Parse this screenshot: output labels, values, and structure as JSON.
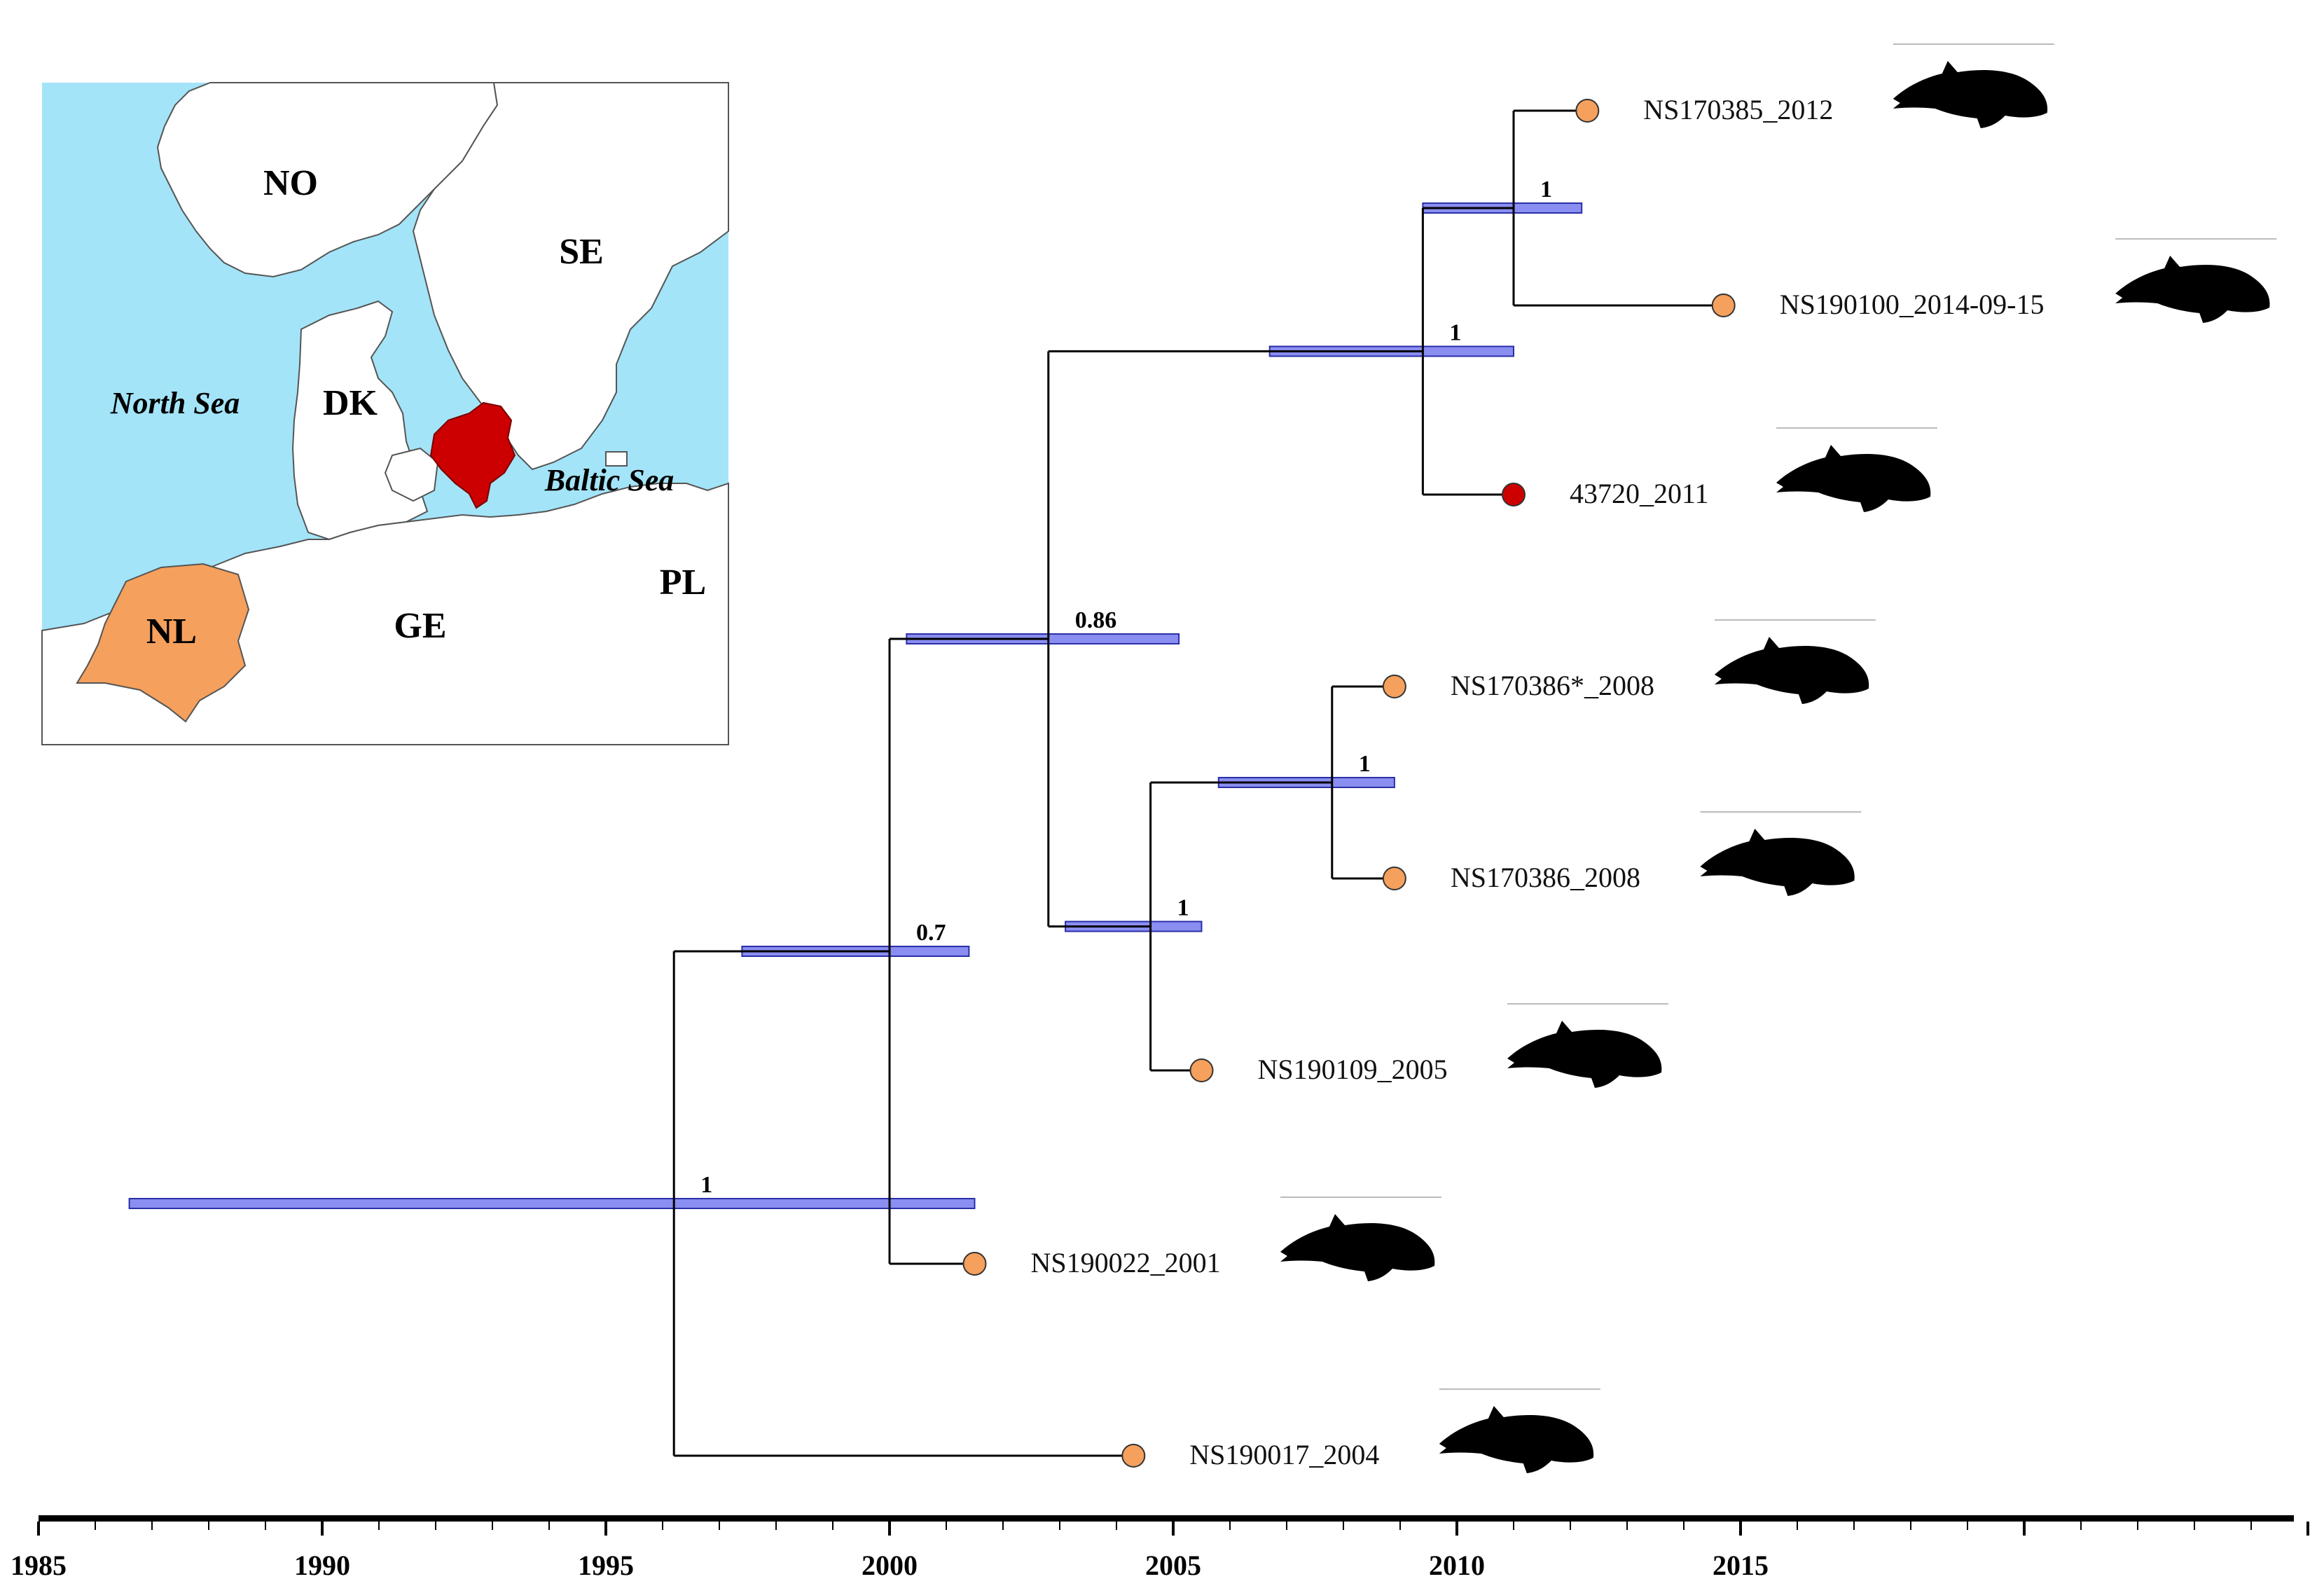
{
  "colors": {
    "sea": "#a3e4f8",
    "land": "#ffffff",
    "netherlands": "#f5a05c",
    "denmark_highlight": "#cc0000",
    "hpd_bar_fill": "#8a8ef0",
    "hpd_bar_stroke": "#2a2fa8",
    "branch": "#000000",
    "tip_orange": "#f5a05c",
    "tip_red": "#cc0000",
    "axis": "#000000"
  },
  "map": {
    "countries": {
      "no": "NO",
      "se": "SE",
      "dk": "DK",
      "nl": "NL",
      "ge": "GE",
      "pl": "PL"
    },
    "seas": {
      "north_sea": "North Sea",
      "baltic_sea": "Baltic Sea"
    }
  },
  "axis": {
    "min": 1985,
    "max": 2025,
    "ticks": [
      {
        "label": "1985",
        "year": 1985
      },
      {
        "label": "1990",
        "year": 1990
      },
      {
        "label": "1995",
        "year": 1995
      },
      {
        "label": "2000",
        "year": 2000
      },
      {
        "label": "2005",
        "year": 2005
      },
      {
        "label": "2010",
        "year": 2010
      },
      {
        "label": "2015",
        "year": 2015
      }
    ]
  },
  "tree": {
    "tips": [
      {
        "id": "t1",
        "label": "NS170385_2012",
        "year": 2012.3,
        "origin": "NL"
      },
      {
        "id": "t2",
        "label": "NS190100_2014-09-15",
        "year": 2014.7,
        "origin": "NL"
      },
      {
        "id": "t3",
        "label": "43720_2011",
        "year": 2011.0,
        "origin": "DK"
      },
      {
        "id": "t4",
        "label": "NS170386*_2008",
        "year": 2008.9,
        "origin": "NL"
      },
      {
        "id": "t5",
        "label": "NS170386_2008",
        "year": 2008.9,
        "origin": "NL"
      },
      {
        "id": "t6",
        "label": "NS190109_2005",
        "year": 2005.5,
        "origin": "NL"
      },
      {
        "id": "t7",
        "label": "NS190022_2001",
        "year": 2001.5,
        "origin": "NL"
      },
      {
        "id": "t8",
        "label": "NS190017_2004",
        "year": 2004.3,
        "origin": "NL"
      }
    ],
    "nodes": [
      {
        "id": "root",
        "year": 1996.2,
        "posterior": "1",
        "hpd": [
          1986.6,
          2001.5
        ],
        "children": [
          "n07",
          "t8"
        ]
      },
      {
        "id": "n07",
        "year": 2000.0,
        "posterior": "0.7",
        "hpd": [
          1997.4,
          2001.4
        ],
        "children": [
          "n086",
          "t7"
        ]
      },
      {
        "id": "n086",
        "year": 2002.8,
        "posterior": "0.86",
        "hpd": [
          2000.3,
          2005.1
        ],
        "children": [
          "nA",
          "nC"
        ]
      },
      {
        "id": "nA",
        "year": 2009.4,
        "posterior": "1",
        "hpd": [
          2006.7,
          2011.0
        ],
        "children": [
          "nB",
          "t3"
        ]
      },
      {
        "id": "nB",
        "year": 2011.0,
        "posterior": "1",
        "hpd": [
          2009.4,
          2012.2
        ],
        "children": [
          "t1",
          "t2"
        ]
      },
      {
        "id": "nC",
        "year": 2004.6,
        "posterior": "1",
        "hpd": [
          2003.1,
          2005.5
        ],
        "children": [
          "nD",
          "t6"
        ]
      },
      {
        "id": "nD",
        "year": 2007.8,
        "posterior": "1",
        "hpd": [
          2005.8,
          2008.9
        ],
        "children": [
          "t4",
          "t5"
        ]
      }
    ]
  },
  "silhouettes": {
    "icon": "porpoise-silhouette-icon"
  }
}
